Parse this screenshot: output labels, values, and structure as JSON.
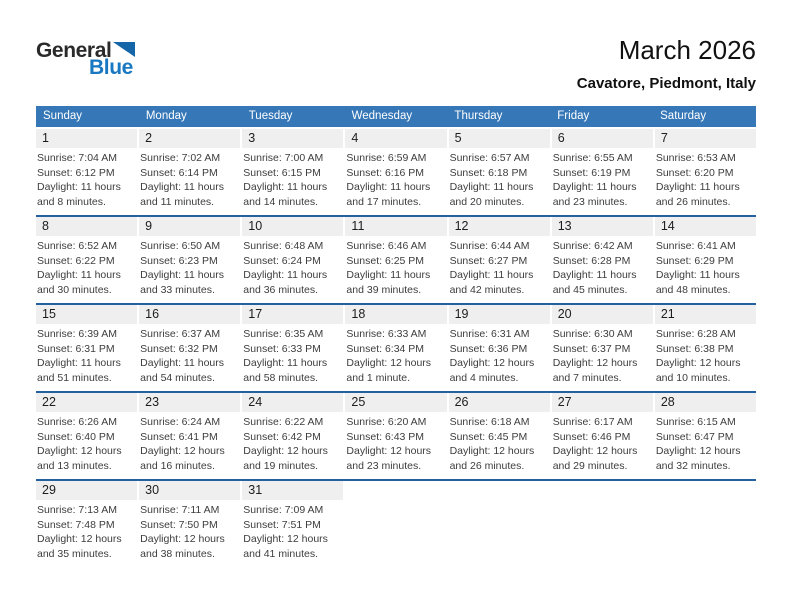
{
  "logo": {
    "part1": "General",
    "part2": "Blue"
  },
  "header": {
    "title": "March 2026",
    "subtitle": "Cavatore, Piedmont, Italy"
  },
  "colors": {
    "header_bar": "#3577b7",
    "week_separator": "#24619e",
    "day_strip": "#efefef",
    "logo_blue": "#1878c1"
  },
  "calendar": {
    "weekdays": [
      "Sunday",
      "Monday",
      "Tuesday",
      "Wednesday",
      "Thursday",
      "Friday",
      "Saturday"
    ],
    "weeks": [
      [
        {
          "day": "1",
          "sunrise": "Sunrise: 7:04 AM",
          "sunset": "Sunset: 6:12 PM",
          "daylight": "Daylight: 11 hours and 8 minutes."
        },
        {
          "day": "2",
          "sunrise": "Sunrise: 7:02 AM",
          "sunset": "Sunset: 6:14 PM",
          "daylight": "Daylight: 11 hours and 11 minutes."
        },
        {
          "day": "3",
          "sunrise": "Sunrise: 7:00 AM",
          "sunset": "Sunset: 6:15 PM",
          "daylight": "Daylight: 11 hours and 14 minutes."
        },
        {
          "day": "4",
          "sunrise": "Sunrise: 6:59 AM",
          "sunset": "Sunset: 6:16 PM",
          "daylight": "Daylight: 11 hours and 17 minutes."
        },
        {
          "day": "5",
          "sunrise": "Sunrise: 6:57 AM",
          "sunset": "Sunset: 6:18 PM",
          "daylight": "Daylight: 11 hours and 20 minutes."
        },
        {
          "day": "6",
          "sunrise": "Sunrise: 6:55 AM",
          "sunset": "Sunset: 6:19 PM",
          "daylight": "Daylight: 11 hours and 23 minutes."
        },
        {
          "day": "7",
          "sunrise": "Sunrise: 6:53 AM",
          "sunset": "Sunset: 6:20 PM",
          "daylight": "Daylight: 11 hours and 26 minutes."
        }
      ],
      [
        {
          "day": "8",
          "sunrise": "Sunrise: 6:52 AM",
          "sunset": "Sunset: 6:22 PM",
          "daylight": "Daylight: 11 hours and 30 minutes."
        },
        {
          "day": "9",
          "sunrise": "Sunrise: 6:50 AM",
          "sunset": "Sunset: 6:23 PM",
          "daylight": "Daylight: 11 hours and 33 minutes."
        },
        {
          "day": "10",
          "sunrise": "Sunrise: 6:48 AM",
          "sunset": "Sunset: 6:24 PM",
          "daylight": "Daylight: 11 hours and 36 minutes."
        },
        {
          "day": "11",
          "sunrise": "Sunrise: 6:46 AM",
          "sunset": "Sunset: 6:25 PM",
          "daylight": "Daylight: 11 hours and 39 minutes."
        },
        {
          "day": "12",
          "sunrise": "Sunrise: 6:44 AM",
          "sunset": "Sunset: 6:27 PM",
          "daylight": "Daylight: 11 hours and 42 minutes."
        },
        {
          "day": "13",
          "sunrise": "Sunrise: 6:42 AM",
          "sunset": "Sunset: 6:28 PM",
          "daylight": "Daylight: 11 hours and 45 minutes."
        },
        {
          "day": "14",
          "sunrise": "Sunrise: 6:41 AM",
          "sunset": "Sunset: 6:29 PM",
          "daylight": "Daylight: 11 hours and 48 minutes."
        }
      ],
      [
        {
          "day": "15",
          "sunrise": "Sunrise: 6:39 AM",
          "sunset": "Sunset: 6:31 PM",
          "daylight": "Daylight: 11 hours and 51 minutes."
        },
        {
          "day": "16",
          "sunrise": "Sunrise: 6:37 AM",
          "sunset": "Sunset: 6:32 PM",
          "daylight": "Daylight: 11 hours and 54 minutes."
        },
        {
          "day": "17",
          "sunrise": "Sunrise: 6:35 AM",
          "sunset": "Sunset: 6:33 PM",
          "daylight": "Daylight: 11 hours and 58 minutes."
        },
        {
          "day": "18",
          "sunrise": "Sunrise: 6:33 AM",
          "sunset": "Sunset: 6:34 PM",
          "daylight": "Daylight: 12 hours and 1 minute."
        },
        {
          "day": "19",
          "sunrise": "Sunrise: 6:31 AM",
          "sunset": "Sunset: 6:36 PM",
          "daylight": "Daylight: 12 hours and 4 minutes."
        },
        {
          "day": "20",
          "sunrise": "Sunrise: 6:30 AM",
          "sunset": "Sunset: 6:37 PM",
          "daylight": "Daylight: 12 hours and 7 minutes."
        },
        {
          "day": "21",
          "sunrise": "Sunrise: 6:28 AM",
          "sunset": "Sunset: 6:38 PM",
          "daylight": "Daylight: 12 hours and 10 minutes."
        }
      ],
      [
        {
          "day": "22",
          "sunrise": "Sunrise: 6:26 AM",
          "sunset": "Sunset: 6:40 PM",
          "daylight": "Daylight: 12 hours and 13 minutes."
        },
        {
          "day": "23",
          "sunrise": "Sunrise: 6:24 AM",
          "sunset": "Sunset: 6:41 PM",
          "daylight": "Daylight: 12 hours and 16 minutes."
        },
        {
          "day": "24",
          "sunrise": "Sunrise: 6:22 AM",
          "sunset": "Sunset: 6:42 PM",
          "daylight": "Daylight: 12 hours and 19 minutes."
        },
        {
          "day": "25",
          "sunrise": "Sunrise: 6:20 AM",
          "sunset": "Sunset: 6:43 PM",
          "daylight": "Daylight: 12 hours and 23 minutes."
        },
        {
          "day": "26",
          "sunrise": "Sunrise: 6:18 AM",
          "sunset": "Sunset: 6:45 PM",
          "daylight": "Daylight: 12 hours and 26 minutes."
        },
        {
          "day": "27",
          "sunrise": "Sunrise: 6:17 AM",
          "sunset": "Sunset: 6:46 PM",
          "daylight": "Daylight: 12 hours and 29 minutes."
        },
        {
          "day": "28",
          "sunrise": "Sunrise: 6:15 AM",
          "sunset": "Sunset: 6:47 PM",
          "daylight": "Daylight: 12 hours and 32 minutes."
        }
      ],
      [
        {
          "day": "29",
          "sunrise": "Sunrise: 7:13 AM",
          "sunset": "Sunset: 7:48 PM",
          "daylight": "Daylight: 12 hours and 35 minutes."
        },
        {
          "day": "30",
          "sunrise": "Sunrise: 7:11 AM",
          "sunset": "Sunset: 7:50 PM",
          "daylight": "Daylight: 12 hours and 38 minutes."
        },
        {
          "day": "31",
          "sunrise": "Sunrise: 7:09 AM",
          "sunset": "Sunset: 7:51 PM",
          "daylight": "Daylight: 12 hours and 41 minutes."
        },
        null,
        null,
        null,
        null
      ]
    ]
  }
}
